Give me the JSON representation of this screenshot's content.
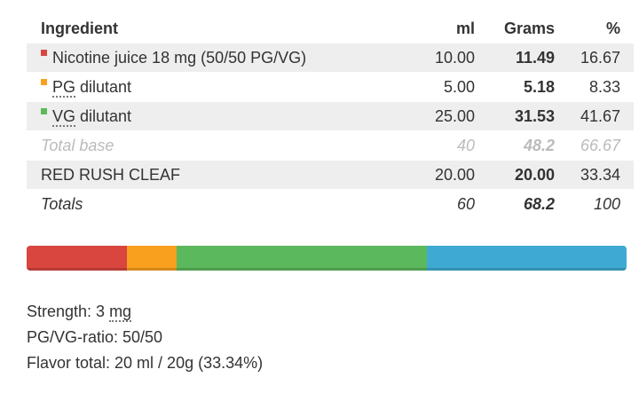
{
  "table": {
    "header": [
      "Ingredient",
      "ml",
      "Grams",
      "%"
    ],
    "rows": [
      {
        "cells": [
          "Nicotine juice 18 mg (50/50 PG/VG)",
          "10.00",
          "11.49",
          "16.67"
        ],
        "color": "#d9453f"
      },
      {
        "cells": [
          "PG dilutant",
          "5.00",
          "5.18",
          "8.33"
        ],
        "color": "#f9a11f"
      },
      {
        "cells": [
          "VG dilutant",
          "25.00",
          "31.53",
          "41.67"
        ],
        "color": "#5cb85c"
      },
      {
        "cells": [
          "Total base",
          "40",
          "48.2",
          "66.67"
        ]
      },
      {
        "cells": [
          "RED RUSH CLEAF",
          "20.00",
          "20.00",
          "33.34"
        ],
        "color": "#3eaad3"
      },
      {
        "cells": [
          "Totals",
          "60",
          "68.2",
          "100"
        ]
      }
    ]
  },
  "summary": [
    "Strength: 3 mg",
    "PG/VG-ratio: 50/50",
    "Flavor total: 20 ml / 20g (33.34%)"
  ]
}
